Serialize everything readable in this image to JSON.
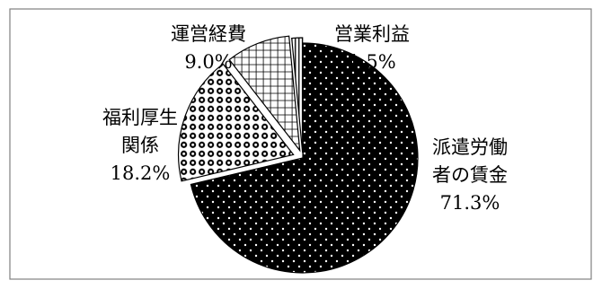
{
  "chart_data": {
    "type": "pie",
    "title": "",
    "slices": [
      {
        "label_lines": [
          "派遣労働",
          "者の賃金"
        ],
        "value_text": "71.3%",
        "value": 71.3,
        "fill_pattern": "dots",
        "color": "#000000"
      },
      {
        "label_lines": [
          "福利厚生",
          "関係"
        ],
        "value_text": "18.2%",
        "value": 18.2,
        "fill_pattern": "circles",
        "color": "#000000"
      },
      {
        "label_lines": [
          "運営経費"
        ],
        "value_text": "9.0%",
        "value": 9.0,
        "fill_pattern": "grid",
        "color": "#000000"
      },
      {
        "label_lines": [
          "営業利益"
        ],
        "value_text": "1.5%",
        "value": 1.5,
        "fill_pattern": "vertical-lines",
        "color": "#000000"
      }
    ],
    "start": "12 o'clock",
    "direction": "clockwise",
    "exploded": true,
    "legend": "none"
  }
}
